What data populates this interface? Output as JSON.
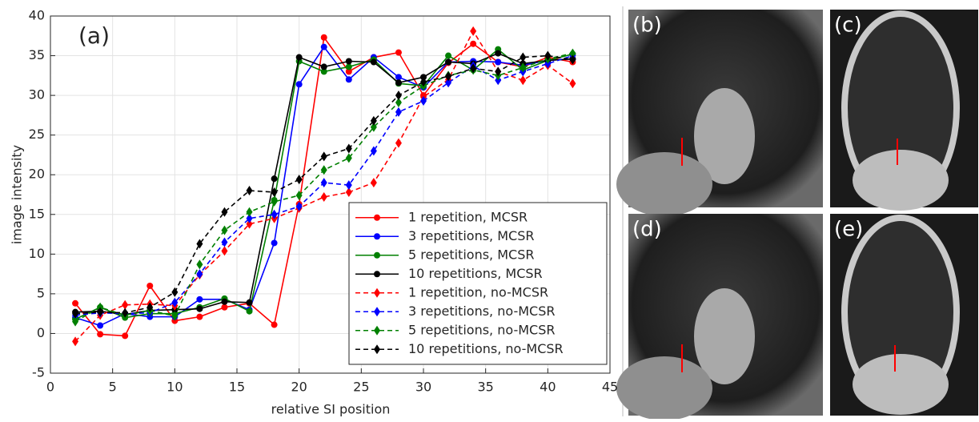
{
  "chart_data": {
    "type": "line",
    "annotation": "(a)",
    "xlabel": "relative SI position",
    "ylabel": "image intensity",
    "x": [
      2,
      4,
      6,
      8,
      10,
      12,
      14,
      16,
      18,
      20,
      22,
      24,
      26,
      28,
      30,
      32,
      34,
      36,
      38,
      40,
      42
    ],
    "xlim": [
      0,
      45
    ],
    "xticks": [
      0,
      5,
      10,
      15,
      20,
      25,
      30,
      35,
      40,
      45
    ],
    "ylim": [
      -5,
      40
    ],
    "yticks": [
      -5,
      0,
      5,
      10,
      15,
      20,
      25,
      30,
      35,
      40
    ],
    "grid": true,
    "legend": "lower right",
    "series": [
      {
        "name": "1 repetition, MCSR",
        "color": "#ff0000",
        "dashed": false,
        "marker": "circle",
        "values": [
          3.8,
          -0.1,
          -0.3,
          6.0,
          1.6,
          2.1,
          3.3,
          3.8,
          1.1,
          16.3,
          37.3,
          33.0,
          34.8,
          35.4,
          30.0,
          34.1,
          36.5,
          34.2,
          33.6,
          34.8,
          34.2
        ]
      },
      {
        "name": "3 repetitions, MCSR",
        "color": "#0000ff",
        "dashed": false,
        "marker": "circle",
        "values": [
          2.0,
          1.0,
          2.5,
          2.1,
          2.1,
          4.3,
          4.3,
          3.0,
          11.4,
          31.4,
          36.1,
          32.0,
          34.8,
          32.3,
          31.0,
          34.2,
          34.3,
          34.2,
          33.8,
          34.4,
          34.6
        ]
      },
      {
        "name": "5 repetitions, MCSR",
        "color": "#008000",
        "dashed": false,
        "marker": "circle",
        "values": [
          1.8,
          3.3,
          2.0,
          2.5,
          2.5,
          3.3,
          4.4,
          2.8,
          16.8,
          34.3,
          33.0,
          33.6,
          34.5,
          31.5,
          31.2,
          35.0,
          33.2,
          35.8,
          33.2,
          34.4,
          35.2
        ]
      },
      {
        "name": "10 repetitions, MCSR",
        "color": "#000000",
        "dashed": false,
        "marker": "circle",
        "values": [
          2.7,
          2.8,
          2.4,
          2.9,
          3.0,
          3.1,
          4.0,
          3.9,
          19.5,
          34.8,
          33.6,
          34.3,
          34.2,
          31.6,
          32.3,
          34.2,
          34.0,
          35.3,
          34.0,
          34.4,
          34.6
        ]
      },
      {
        "name": "1 repetition, no-MCSR",
        "color": "#ff0000",
        "dashed": true,
        "marker": "diamond",
        "values": [
          -1.0,
          2.3,
          3.6,
          3.7,
          3.5,
          7.4,
          10.4,
          13.8,
          14.5,
          15.8,
          17.2,
          17.8,
          19.0,
          24.0,
          29.8,
          32.0,
          38.1,
          33.0,
          31.9,
          33.8,
          31.5
        ]
      },
      {
        "name": "3 repetitions, no-MCSR",
        "color": "#0000ff",
        "dashed": true,
        "marker": "diamond",
        "values": [
          2.3,
          2.6,
          2.5,
          2.6,
          3.9,
          7.5,
          11.5,
          14.5,
          15.0,
          16.0,
          19.0,
          18.7,
          23.0,
          27.9,
          29.3,
          31.6,
          33.7,
          31.9,
          33.0,
          34.0,
          35.0
        ]
      },
      {
        "name": "5 repetitions, no-MCSR",
        "color": "#008000",
        "dashed": true,
        "marker": "diamond",
        "values": [
          1.5,
          3.3,
          2.3,
          2.9,
          2.2,
          8.7,
          13.0,
          15.3,
          16.6,
          17.4,
          20.6,
          22.1,
          26.0,
          29.1,
          31.2,
          32.5,
          33.2,
          32.5,
          33.5,
          34.6,
          35.3
        ]
      },
      {
        "name": "10 repetitions, no-MCSR",
        "color": "#000000",
        "dashed": true,
        "marker": "diamond",
        "values": [
          2.5,
          2.7,
          2.6,
          3.3,
          5.2,
          11.3,
          15.3,
          18.0,
          17.8,
          19.4,
          22.3,
          23.3,
          26.8,
          30.0,
          31.7,
          32.4,
          33.4,
          33.0,
          34.8,
          35.0,
          34.5
        ]
      }
    ]
  },
  "image_panels": [
    {
      "label": "(b)"
    },
    {
      "label": "(c)"
    },
    {
      "label": "(d)"
    },
    {
      "label": "(e)"
    }
  ]
}
